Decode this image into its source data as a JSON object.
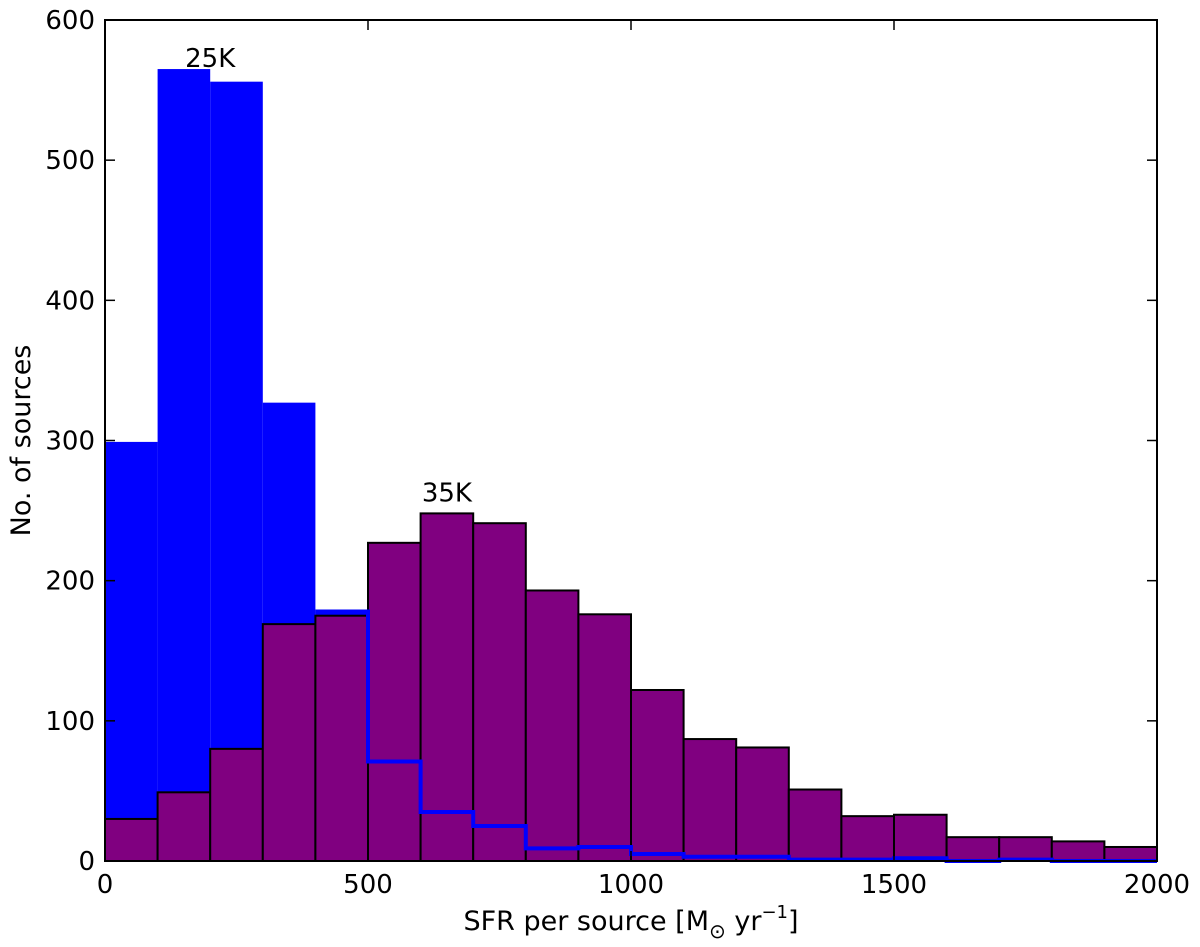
{
  "chart_data": {
    "type": "bar",
    "bin_edges": [
      0,
      100,
      200,
      300,
      400,
      500,
      600,
      700,
      800,
      900,
      1000,
      1100,
      1200,
      1300,
      1400,
      1500,
      1600,
      1700,
      1800,
      1900,
      2000
    ],
    "series": [
      {
        "color": "#0000ff",
        "values": [
          299,
          565,
          556,
          327,
          178,
          71,
          35,
          25,
          9,
          10,
          5,
          3,
          3,
          1,
          1,
          2,
          0,
          1,
          0,
          0
        ]
      },
      {
        "color": "#800080",
        "values": [
          30,
          49,
          80,
          169,
          175,
          227,
          248,
          241,
          193,
          176,
          122,
          87,
          81,
          51,
          32,
          33,
          17,
          17,
          14,
          10
        ]
      }
    ],
    "xlabel": "SFR per source [M",
    "xlabel_sub": "⊙",
    "xlabel_mid": " yr",
    "xlabel_sup": "−1",
    "xlabel_end": "]",
    "ylabel": "No. of sources",
    "xlim": [
      0,
      2000
    ],
    "ylim": [
      0,
      600
    ],
    "xticks": [
      0,
      500,
      1000,
      1500,
      2000
    ],
    "yticks": [
      0,
      100,
      200,
      300,
      400,
      500,
      600
    ],
    "annotations": [
      {
        "text": "25K",
        "x": 200,
        "y": 570
      },
      {
        "text": "35K",
        "x": 650,
        "y": 260
      }
    ],
    "grid": false
  }
}
